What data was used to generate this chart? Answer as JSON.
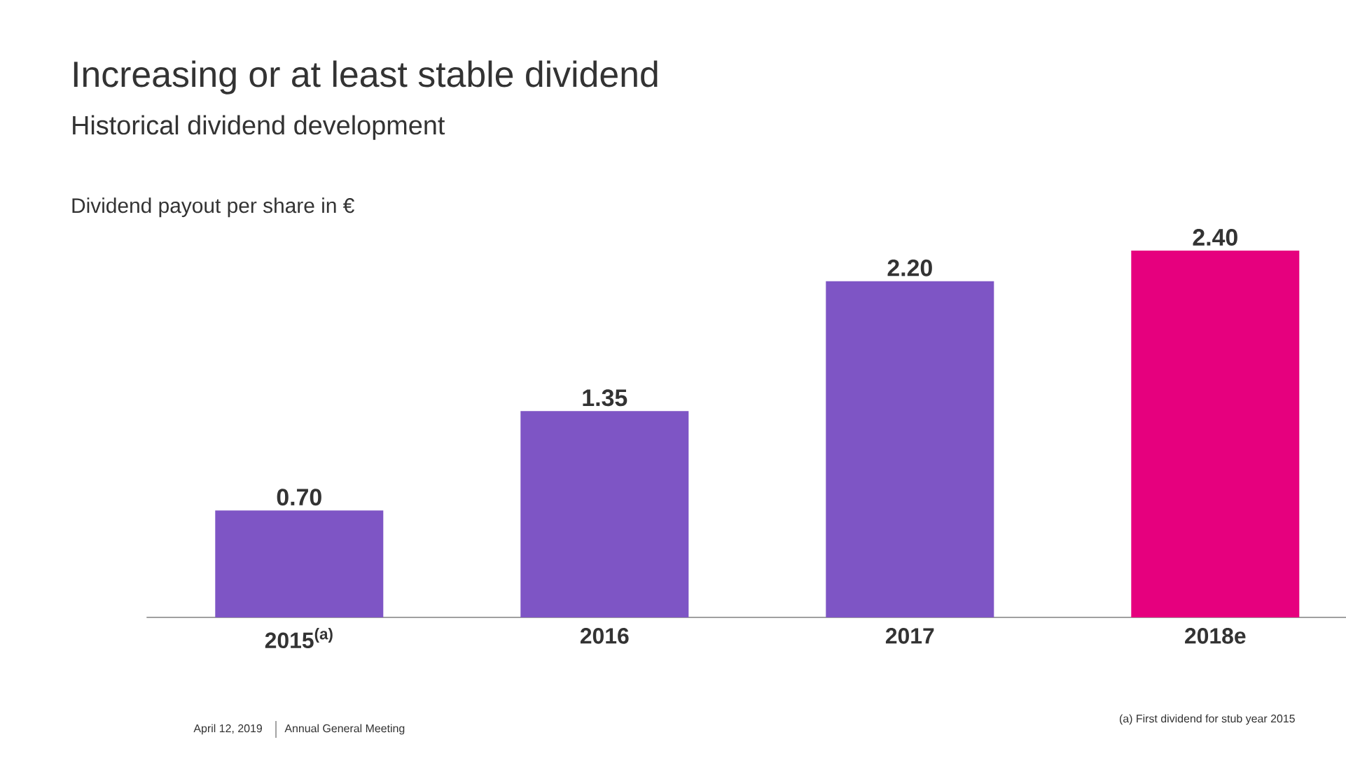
{
  "chart_data": {
    "type": "bar",
    "title": "Increasing or at least stable dividend",
    "subtitle": "Historical dividend development",
    "ylabel": "Dividend payout per share in €",
    "categories": [
      "2015$^{(a)}$",
      "2016",
      "2017",
      "2018e"
    ],
    "values": [
      0.7,
      1.35,
      2.2,
      2.4
    ],
    "colors": [
      "#7e55c5",
      "#7e55c5",
      "#7e55c5",
      "#e6007e"
    ],
    "value_labels": [
      "0.70",
      "1.35",
      "2.20",
      "2.40"
    ],
    "annotations": [
      "April 12, 2019",
      "Annual General Meeting",
      "(a) First dividend for stub year 2015"
    ]
  }
}
